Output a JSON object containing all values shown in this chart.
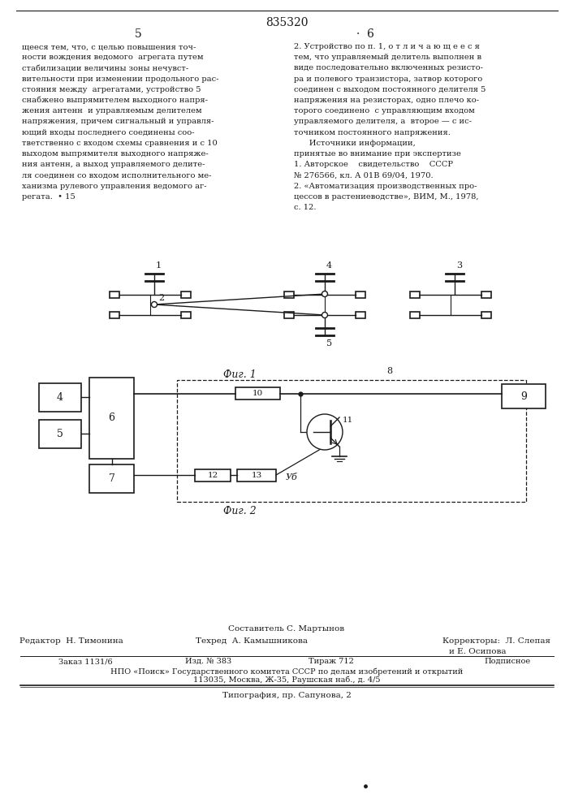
{
  "patent_number": "835320",
  "left_lines": [
    "щееся тем, что, с целью повышения точ-",
    "ности вождения ведомого  агрегата путем",
    "стабилизации величины зоны нечувст-",
    "вительности при изменении продольного рас-",
    "стояния между  агрегатами, устройство 5",
    "снабжено выпрямителем выходного напря-",
    "жения антенн  и управляемым делителем",
    "напряжения, причем сигнальный и управля-",
    "ющий входы последнего соединены соо-",
    "тветственно с входом схемы сравнения и с 10",
    "выходом выпрямителя выходного напряже-",
    "ния антенн, а выход управляемого делите-",
    "ля соединен со входом исполнительного ме-",
    "ханизма рулевого управления ведомого аг-",
    "регата.  • 15"
  ],
  "right_lines": [
    "2. Устройство по п. 1, о т л и ч а ю щ е е с я",
    "тем, что управляемый делитель выполнен в",
    "виде последовательно включенных резисто-",
    "ра и полевого транзистора, затвор которого",
    "соединен с выходом постоянного делителя 5",
    "напряжения на резисторах, одно плечо ко-",
    "торого соединено  с управляющим входом",
    "управляемого делителя, а  второе — с ис-",
    "точником постоянного напряжения.",
    "      Источники информации,",
    "принятые во внимание при экспертизе",
    "1. Авторское    свидетельство    СССР",
    "№ 276566, кл. А 01В 69/04, 1970.",
    "2. «Автоматизация производственных про-",
    "цессов в растениеводстве», ВИМ, М., 1978,",
    "с. 12."
  ],
  "footer_composer": "Составитель С. Мартынов",
  "footer_editor": "Редактор  Н. Тимонина",
  "footer_techred": "Техред  А. Камышникова",
  "footer_correctors": "Корректоры:  Л. Слепая",
  "footer_correctors2": "и Е. Осипова",
  "footer_order": "Заказ 1131/6",
  "footer_izd": "Изд. № 383",
  "footer_tirazh": "Тираж 712",
  "footer_podpis": "Подписное",
  "footer_npo": "НПО «Поиск» Государственного комитета СССР по делам изобретений и открытий",
  "footer_addr": "113035, Москва, Ж-35, Раушская наб., д. 4/5",
  "footer_tip": "Типография, пр. Сапунова, 2"
}
